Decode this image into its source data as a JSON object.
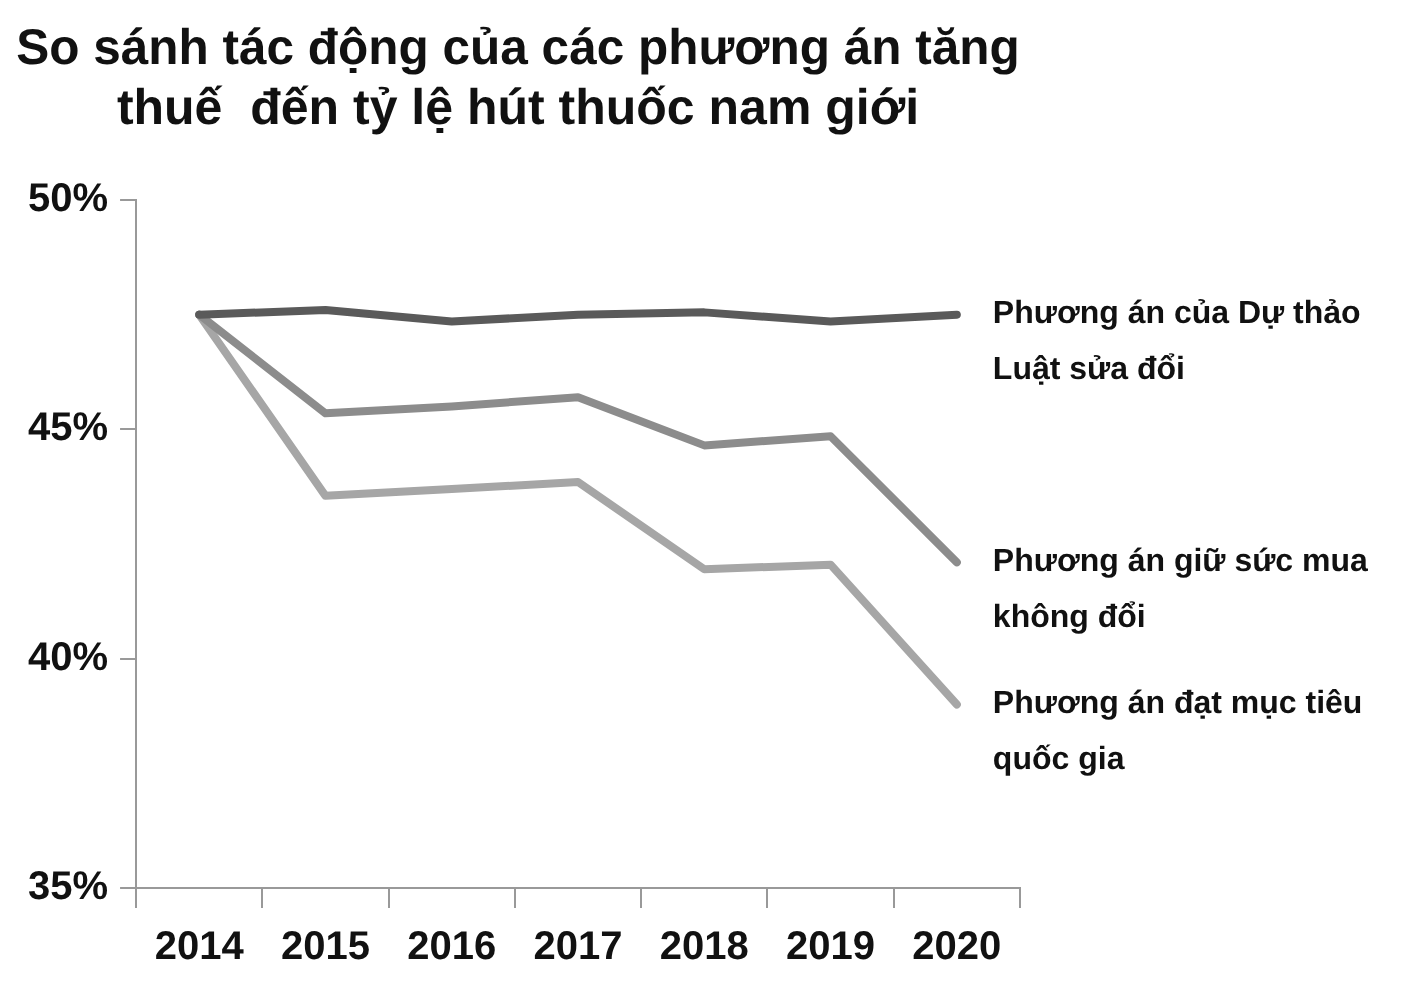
{
  "chart_data": {
    "type": "line",
    "title": "So sánh tác động của các phương án tăng thuế  đến tỷ lệ hút thuốc nam giới",
    "categories": [
      "2014",
      "2015",
      "2016",
      "2017",
      "2018",
      "2019",
      "2020"
    ],
    "series": [
      {
        "name": "Phương án của Dự thảo Luật sửa đổi",
        "color": "#5a5a5a",
        "values": [
          47.5,
          47.6,
          47.35,
          47.5,
          47.55,
          47.35,
          47.5
        ]
      },
      {
        "name": "Phương án giữ sức mua không đổi",
        "color": "#8c8c8c",
        "values": [
          47.5,
          45.35,
          45.5,
          45.7,
          44.65,
          44.85,
          42.1
        ]
      },
      {
        "name": "Phương án đạt mục tiêu quốc gia",
        "color": "#a6a6a6",
        "values": [
          47.5,
          43.55,
          43.7,
          43.85,
          41.95,
          42.05,
          39.0
        ]
      }
    ],
    "ylim": [
      35,
      50
    ],
    "yticks": [
      {
        "value": 35,
        "label": "35%"
      },
      {
        "value": 40,
        "label": "40%"
      },
      {
        "value": 45,
        "label": "45%"
      },
      {
        "value": 50,
        "label": "50%"
      }
    ],
    "grid": false,
    "legend": false,
    "marker": "none",
    "line_style": "solid"
  }
}
